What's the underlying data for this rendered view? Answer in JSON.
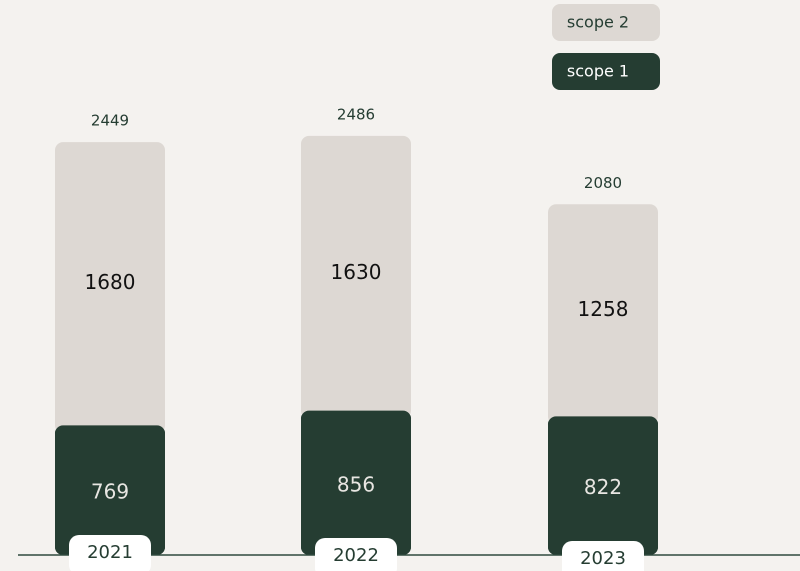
{
  "chart_data": {
    "type": "stacked-bar",
    "categories": [
      "2021",
      "2022",
      "2023"
    ],
    "series": [
      {
        "name": "scope 1",
        "color": "#253d32",
        "values": [
          769,
          856,
          822
        ]
      },
      {
        "name": "scope 2",
        "color": "#ddd8d3",
        "values": [
          1680,
          1630,
          1258
        ]
      }
    ],
    "totals": [
      2449,
      2486,
      2080
    ]
  }
}
